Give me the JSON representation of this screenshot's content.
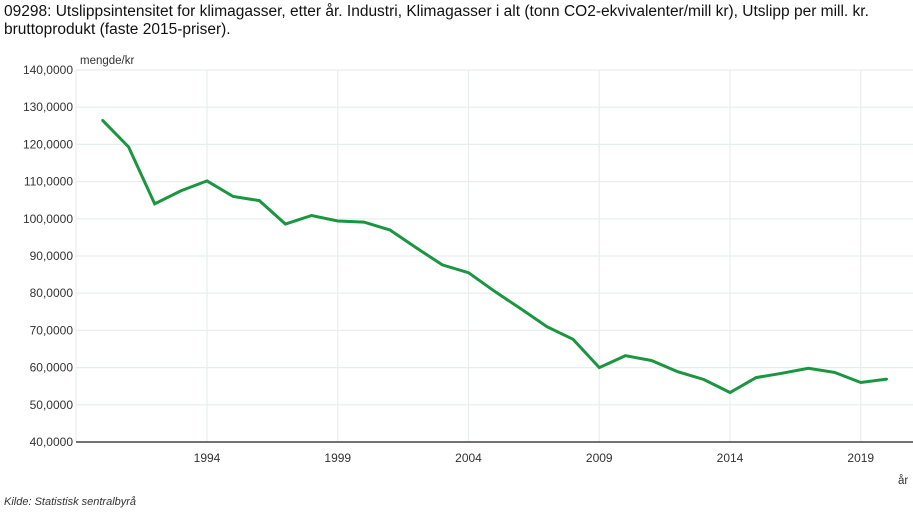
{
  "chart_data": {
    "type": "line",
    "title": "09298: Utslippsintensitet for klimagasser, etter år. Industri, Klimagasser i alt (tonn CO2-ekvivalenter/mill kr), Utslipp per mill. kr. bruttoprodukt (faste 2015-priser).",
    "xlabel": "år",
    "ylabel": "mengde/kr",
    "ylim": [
      40,
      140
    ],
    "xlim": [
      1989,
      2021
    ],
    "grid": true,
    "ytick_labels": [
      "140,0000",
      "130,0000",
      "120,0000",
      "110,0000",
      "100,0000",
      "90,0000",
      "80,0000",
      "70,0000",
      "60,0000",
      "50,0000",
      "40,0000"
    ],
    "ytick_values": [
      140,
      130,
      120,
      110,
      100,
      90,
      80,
      70,
      60,
      50,
      40
    ],
    "xtick_labels": [
      "1994",
      "1999",
      "2004",
      "2009",
      "2014",
      "2019"
    ],
    "xtick_values": [
      1994,
      1999,
      2004,
      2009,
      2014,
      2019
    ],
    "series": [
      {
        "name": "Klimagasser i alt",
        "color": "#1a9641",
        "x": [
          1990,
          1991,
          1992,
          1993,
          1994,
          1995,
          1996,
          1997,
          1998,
          1999,
          2000,
          2001,
          2002,
          2003,
          2004,
          2005,
          2006,
          2007,
          2008,
          2009,
          2010,
          2011,
          2012,
          2013,
          2014,
          2015,
          2016,
          2017,
          2018,
          2019,
          2020
        ],
        "values": [
          126.5,
          119.3,
          104.0,
          107.5,
          110.2,
          106.0,
          104.9,
          98.6,
          100.9,
          99.4,
          99.1,
          97.0,
          92.2,
          87.6,
          85.5,
          80.5,
          75.8,
          71.0,
          67.6,
          60.0,
          63.2,
          61.9,
          58.9,
          56.8,
          53.3,
          57.3,
          58.5,
          59.8,
          58.7,
          56.0,
          56.9
        ]
      }
    ],
    "source": "Kilde:  Statistisk sentralbyrå"
  }
}
